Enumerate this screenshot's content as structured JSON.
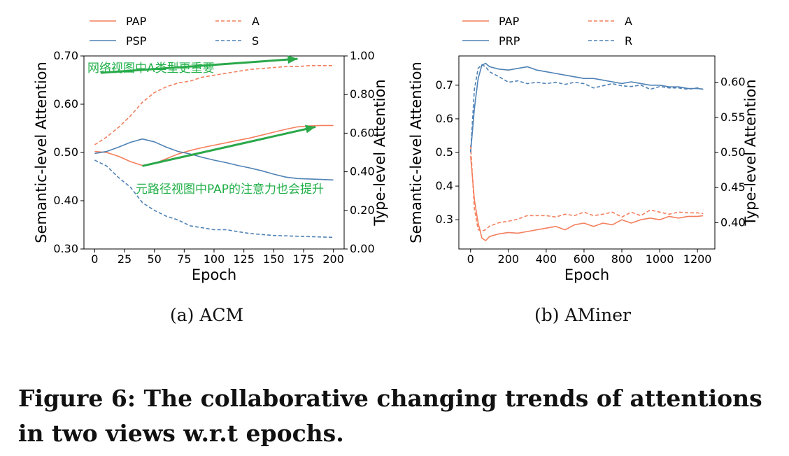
{
  "colors": {
    "orange": "#f47f5d",
    "blue": "#4f82b5",
    "green": "#2aa84a",
    "annotation_text": "#22b04a"
  },
  "captions": {
    "a": "(a)  ACM",
    "b": "(b)  AMiner",
    "figure": "Figure 6: The collaborative changing trends of attentions in two views w.r.t epochs."
  },
  "chart_data": [
    {
      "id": "acm",
      "type": "line",
      "caption": "(a)  ACM",
      "title": "",
      "xlabel": "Epoch",
      "ylabel_left": "Semantic-level Attention",
      "ylabel_right": "Type-level Attention",
      "xlim": [
        -9,
        209
      ],
      "ylim_left": [
        0.3,
        0.7
      ],
      "ylim_right": [
        0.0,
        1.0
      ],
      "xticks": [
        0,
        25,
        50,
        75,
        100,
        125,
        150,
        175,
        200
      ],
      "yticks_left": [
        0.3,
        0.4,
        0.5,
        0.6,
        0.7
      ],
      "ytick_labels_left": [
        "0.30",
        "0.40",
        "0.50",
        "0.60",
        "0.70"
      ],
      "yticks_right": [
        0.0,
        0.2,
        0.4,
        0.6,
        0.8,
        1.0
      ],
      "ytick_labels_right": [
        "0.00",
        "0.20",
        "0.40",
        "0.60",
        "0.80",
        "1.00"
      ],
      "legend_placement": "top-outside",
      "series": [
        {
          "name": "PAP",
          "axis": "left",
          "style": "solid",
          "color": "#f47f5d",
          "x": [
            0,
            10,
            20,
            30,
            40,
            50,
            60,
            70,
            80,
            90,
            100,
            110,
            120,
            130,
            140,
            150,
            160,
            170,
            180,
            190,
            200
          ],
          "y": [
            0.502,
            0.5,
            0.492,
            0.481,
            0.473,
            0.477,
            0.487,
            0.497,
            0.504,
            0.51,
            0.515,
            0.52,
            0.525,
            0.53,
            0.536,
            0.542,
            0.548,
            0.553,
            0.555,
            0.556,
            0.556
          ]
        },
        {
          "name": "PSP",
          "axis": "left",
          "style": "solid",
          "color": "#4f82b5",
          "x": [
            0,
            10,
            20,
            30,
            40,
            50,
            60,
            70,
            80,
            90,
            100,
            110,
            120,
            130,
            140,
            150,
            160,
            170,
            180,
            190,
            200
          ],
          "y": [
            0.498,
            0.502,
            0.511,
            0.521,
            0.528,
            0.522,
            0.511,
            0.502,
            0.497,
            0.49,
            0.484,
            0.479,
            0.473,
            0.468,
            0.462,
            0.455,
            0.449,
            0.446,
            0.445,
            0.444,
            0.443
          ]
        },
        {
          "name": "A",
          "axis": "right",
          "style": "dashed",
          "color": "#f47f5d",
          "x": [
            0,
            10,
            20,
            30,
            40,
            50,
            60,
            70,
            80,
            90,
            100,
            110,
            120,
            130,
            140,
            150,
            160,
            170,
            180,
            190,
            200
          ],
          "y": [
            0.54,
            0.58,
            0.63,
            0.69,
            0.76,
            0.81,
            0.84,
            0.86,
            0.87,
            0.89,
            0.9,
            0.91,
            0.92,
            0.93,
            0.935,
            0.94,
            0.945,
            0.945,
            0.95,
            0.95,
            0.95
          ]
        },
        {
          "name": "S",
          "axis": "right",
          "style": "dashed",
          "color": "#4f82b5",
          "x": [
            0,
            10,
            20,
            30,
            40,
            50,
            60,
            70,
            80,
            90,
            100,
            110,
            120,
            130,
            140,
            150,
            160,
            170,
            180,
            190,
            200
          ],
          "y": [
            0.46,
            0.43,
            0.37,
            0.32,
            0.24,
            0.2,
            0.17,
            0.15,
            0.12,
            0.11,
            0.1,
            0.1,
            0.09,
            0.08,
            0.075,
            0.07,
            0.068,
            0.066,
            0.064,
            0.062,
            0.06
          ]
        }
      ],
      "annotations": [
        {
          "text": "网络视图中A类型更重要",
          "arrow_from": [
            5,
            0.665
          ],
          "arrow_to": [
            170,
            0.694
          ]
        },
        {
          "text": "元路径视图中PAP的注意力也会提升",
          "arrow_from": [
            40,
            0.472
          ],
          "arrow_to": [
            185,
            0.553
          ]
        }
      ]
    },
    {
      "id": "aminer",
      "type": "line",
      "caption": "(b)  AMiner",
      "title": "",
      "xlabel": "Epoch",
      "ylabel_left": "Semantic-level Attention",
      "ylabel_right": "Type-level Attention",
      "xlim": [
        -62,
        1292
      ],
      "ylim_left": [
        0.213,
        0.787
      ],
      "ylim_right": [
        0.3625,
        0.6375
      ],
      "xticks": [
        0,
        200,
        400,
        600,
        800,
        1000,
        1200
      ],
      "yticks_left": [
        0.3,
        0.4,
        0.5,
        0.6,
        0.7
      ],
      "ytick_labels_left": [
        "0.3",
        "0.4",
        "0.5",
        "0.6",
        "0.7"
      ],
      "yticks_right": [
        0.4,
        0.45,
        0.5,
        0.55,
        0.6
      ],
      "ytick_labels_right": [
        "0.40",
        "0.45",
        "0.50",
        "0.55",
        "0.60"
      ],
      "legend_placement": "top-outside",
      "series": [
        {
          "name": "PAP",
          "axis": "left",
          "style": "solid",
          "color": "#f47f5d",
          "x": [
            0,
            20,
            40,
            60,
            80,
            100,
            150,
            200,
            250,
            300,
            350,
            400,
            450,
            500,
            550,
            600,
            650,
            700,
            750,
            800,
            850,
            900,
            950,
            1000,
            1050,
            1100,
            1150,
            1200,
            1230
          ],
          "y": [
            0.49,
            0.36,
            0.29,
            0.245,
            0.238,
            0.25,
            0.258,
            0.262,
            0.26,
            0.265,
            0.27,
            0.275,
            0.28,
            0.27,
            0.285,
            0.29,
            0.28,
            0.29,
            0.285,
            0.3,
            0.29,
            0.3,
            0.305,
            0.3,
            0.31,
            0.305,
            0.31,
            0.31,
            0.312
          ]
        },
        {
          "name": "PRP",
          "axis": "left",
          "style": "solid",
          "color": "#4f82b5",
          "x": [
            0,
            20,
            40,
            60,
            80,
            100,
            150,
            200,
            250,
            300,
            350,
            400,
            450,
            500,
            550,
            600,
            650,
            700,
            750,
            800,
            850,
            900,
            950,
            1000,
            1050,
            1100,
            1150,
            1200,
            1230
          ],
          "y": [
            0.5,
            0.63,
            0.72,
            0.76,
            0.765,
            0.755,
            0.748,
            0.745,
            0.75,
            0.755,
            0.745,
            0.74,
            0.735,
            0.73,
            0.725,
            0.72,
            0.72,
            0.715,
            0.71,
            0.705,
            0.71,
            0.705,
            0.7,
            0.7,
            0.695,
            0.695,
            0.69,
            0.69,
            0.688
          ]
        },
        {
          "name": "A",
          "axis": "right",
          "style": "dashed",
          "color": "#f47f5d",
          "x": [
            0,
            20,
            40,
            60,
            80,
            100,
            150,
            200,
            250,
            300,
            350,
            400,
            450,
            500,
            550,
            600,
            650,
            700,
            750,
            800,
            850,
            900,
            950,
            1000,
            1050,
            1100,
            1150,
            1200,
            1230
          ],
          "y": [
            0.51,
            0.42,
            0.39,
            0.388,
            0.39,
            0.395,
            0.4,
            0.402,
            0.405,
            0.41,
            0.41,
            0.41,
            0.408,
            0.412,
            0.41,
            0.415,
            0.41,
            0.412,
            0.415,
            0.408,
            0.415,
            0.41,
            0.418,
            0.415,
            0.412,
            0.415,
            0.414,
            0.414,
            0.413
          ]
        },
        {
          "name": "R",
          "axis": "right",
          "style": "dashed",
          "color": "#4f82b5",
          "x": [
            0,
            20,
            40,
            60,
            80,
            100,
            150,
            200,
            250,
            300,
            350,
            400,
            450,
            500,
            550,
            600,
            650,
            700,
            750,
            800,
            850,
            900,
            950,
            1000,
            1050,
            1100,
            1150,
            1200,
            1230
          ],
          "y": [
            0.5,
            0.59,
            0.62,
            0.625,
            0.622,
            0.615,
            0.608,
            0.6,
            0.602,
            0.598,
            0.6,
            0.598,
            0.6,
            0.597,
            0.6,
            0.598,
            0.592,
            0.595,
            0.598,
            0.595,
            0.594,
            0.596,
            0.59,
            0.594,
            0.592,
            0.592,
            0.59,
            0.592,
            0.59
          ]
        }
      ],
      "annotations": []
    }
  ]
}
